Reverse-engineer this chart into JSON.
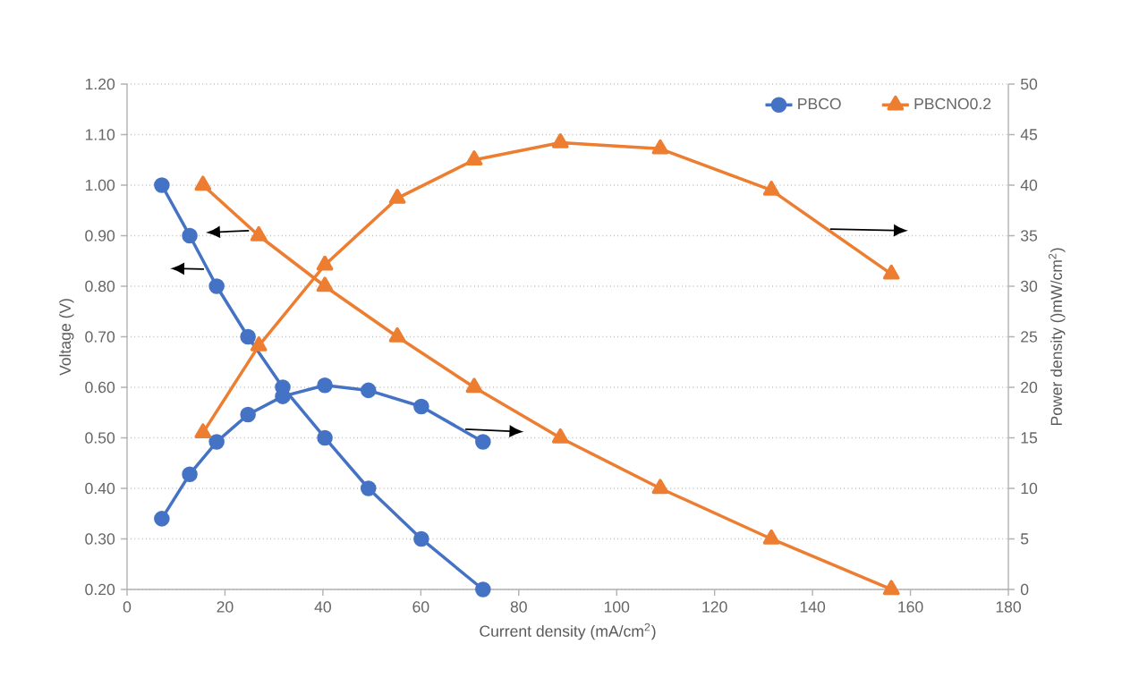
{
  "chart_data": {
    "type": "line",
    "xlabel": "Current density (mA/cm$^{2}$)",
    "ylabel": "Voltage (V)",
    "y2label": "Power density ()mW/cm$^{2}$)",
    "xlim": [
      0,
      180
    ],
    "xticks": [
      0,
      20,
      40,
      60,
      80,
      100,
      120,
      140,
      160,
      180
    ],
    "ylim": [
      0.2,
      1.2
    ],
    "yticks": [
      {
        "value": 0.2,
        "label": "0.20"
      },
      {
        "value": 0.3,
        "label": "0.30"
      },
      {
        "value": 0.4,
        "label": "0.40"
      },
      {
        "value": 0.5,
        "label": "0.50"
      },
      {
        "value": 0.6,
        "label": "0.60"
      },
      {
        "value": 0.7,
        "label": "0.70"
      },
      {
        "value": 0.8,
        "label": "0.80"
      },
      {
        "value": 0.9,
        "label": "0.90"
      },
      {
        "value": 1.0,
        "label": "1.00"
      },
      {
        "value": 1.1,
        "label": "1.10"
      },
      {
        "value": 1.2,
        "label": "1.20"
      }
    ],
    "y2lim": [
      0,
      50
    ],
    "y2ticks": [
      0,
      5,
      10,
      15,
      20,
      25,
      30,
      35,
      40,
      45,
      50
    ],
    "grid": "y",
    "legend": "top right",
    "line_style": "solid",
    "series": [
      {
        "name": "PBCO",
        "color": "#4472c4",
        "marker": "circle",
        "x": [
          7.1,
          12.8,
          18.3,
          24.7,
          31.8,
          40.4,
          49.3,
          60.1,
          72.7
        ],
        "values": [
          1.0,
          0.9,
          0.8,
          0.7,
          0.6,
          0.5,
          0.4,
          0.3,
          0.2
        ]
      },
      {
        "name": "PBCNO0.2",
        "color": "#ed7d31",
        "marker": "triangle",
        "x": [
          15.5,
          26.9,
          40.4,
          55.2,
          70.9,
          88.5,
          108.9,
          131.6,
          156.1
        ],
        "values": [
          1.0,
          0.9,
          0.8,
          0.7,
          0.6,
          0.5,
          0.4,
          0.3,
          0.2
        ]
      },
      {
        "color": "#4472c4",
        "marker": "circle",
        "axis": "y2",
        "x": [
          7.1,
          12.8,
          18.3,
          24.7,
          31.8,
          40.4,
          49.3,
          60.1,
          72.7
        ],
        "values": [
          7.0,
          11.4,
          14.6,
          17.3,
          19.1,
          20.2,
          19.7,
          18.1,
          14.6
        ]
      },
      {
        "color": "#ed7d31",
        "marker": "triangle",
        "axis": "y2",
        "x": [
          15.5,
          26.9,
          40.4,
          55.2,
          70.9,
          88.5,
          108.9,
          131.6,
          156.1
        ],
        "values": [
          15.5,
          24.1,
          32.1,
          38.7,
          42.5,
          44.2,
          43.6,
          39.5,
          31.2
        ]
      }
    ]
  }
}
